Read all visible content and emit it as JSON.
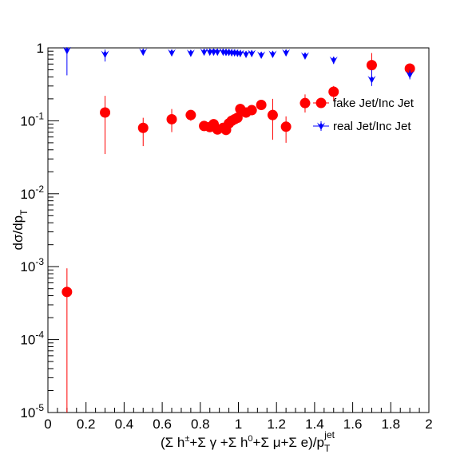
{
  "chart_data": {
    "type": "scatter",
    "title": "",
    "xlabel": "(Σ h±+Σ γ +Σ h0+Σ μ+Σ e)/pTjet",
    "ylabel": "dσ/dpT",
    "xlim": [
      0,
      2
    ],
    "ylim": [
      1e-05,
      1
    ],
    "yscale": "log",
    "grid": false,
    "legend_position": "right",
    "x_ticks": [
      "0",
      "0.2",
      "0.4",
      "0.6",
      "0.8",
      "1",
      "1.2",
      "1.4",
      "1.6",
      "1.8",
      "2"
    ],
    "y_ticks": [
      {
        "base": "10",
        "exp": "-5"
      },
      {
        "base": "10",
        "exp": "-4"
      },
      {
        "base": "10",
        "exp": "-3"
      },
      {
        "base": "10",
        "exp": "-2"
      },
      {
        "base": "10",
        "exp": "-1"
      },
      {
        "base": "1",
        "exp": ""
      }
    ],
    "series": [
      {
        "name": "fake Jet/Inc Jet",
        "color": "#ff0000",
        "marker": "circle",
        "points": [
          {
            "x": 0.1,
            "y": 0.00045,
            "lo": 1e-05,
            "hi": 0.00095
          },
          {
            "x": 0.3,
            "y": 0.13,
            "lo": 0.035,
            "hi": 0.22
          },
          {
            "x": 0.5,
            "y": 0.08,
            "lo": 0.045,
            "hi": 0.11
          },
          {
            "x": 0.65,
            "y": 0.105,
            "lo": 0.07,
            "hi": 0.145
          },
          {
            "x": 0.75,
            "y": 0.12,
            "lo": 0.1,
            "hi": 0.14
          },
          {
            "x": 0.82,
            "y": 0.085,
            "lo": 0.075,
            "hi": 0.095
          },
          {
            "x": 0.85,
            "y": 0.082,
            "lo": 0.073,
            "hi": 0.092
          },
          {
            "x": 0.87,
            "y": 0.09,
            "lo": 0.08,
            "hi": 0.1
          },
          {
            "x": 0.89,
            "y": 0.076,
            "lo": 0.068,
            "hi": 0.085
          },
          {
            "x": 0.92,
            "y": 0.08,
            "lo": 0.07,
            "hi": 0.09
          },
          {
            "x": 0.935,
            "y": 0.075,
            "lo": 0.066,
            "hi": 0.085
          },
          {
            "x": 0.95,
            "y": 0.092,
            "lo": 0.082,
            "hi": 0.102
          },
          {
            "x": 0.965,
            "y": 0.1,
            "lo": 0.09,
            "hi": 0.11
          },
          {
            "x": 0.98,
            "y": 0.105,
            "lo": 0.095,
            "hi": 0.115
          },
          {
            "x": 0.995,
            "y": 0.11,
            "lo": 0.1,
            "hi": 0.12
          },
          {
            "x": 1.01,
            "y": 0.145,
            "lo": 0.12,
            "hi": 0.17
          },
          {
            "x": 1.04,
            "y": 0.13,
            "lo": 0.11,
            "hi": 0.15
          },
          {
            "x": 1.07,
            "y": 0.14,
            "lo": 0.12,
            "hi": 0.16
          },
          {
            "x": 1.12,
            "y": 0.165,
            "lo": 0.14,
            "hi": 0.19
          },
          {
            "x": 1.18,
            "y": 0.12,
            "lo": 0.055,
            "hi": 0.2
          },
          {
            "x": 1.25,
            "y": 0.083,
            "lo": 0.05,
            "hi": 0.115
          },
          {
            "x": 1.35,
            "y": 0.175,
            "lo": 0.13,
            "hi": 0.23
          },
          {
            "x": 1.5,
            "y": 0.25,
            "lo": 0.19,
            "hi": 0.3
          },
          {
            "x": 1.7,
            "y": 0.58,
            "lo": 0.4,
            "hi": 0.85
          },
          {
            "x": 1.9,
            "y": 0.52,
            "lo": 0.43,
            "hi": 0.6
          }
        ]
      },
      {
        "name": "real Jet/Inc Jet",
        "color": "#0000ff",
        "marker": "triangle-down",
        "points": [
          {
            "x": 0.1,
            "y": 0.92,
            "lo": 0.42,
            "hi": 1.0
          },
          {
            "x": 0.3,
            "y": 0.82,
            "lo": 0.65,
            "hi": 0.95
          },
          {
            "x": 0.5,
            "y": 0.88,
            "lo": 0.8,
            "hi": 0.95
          },
          {
            "x": 0.65,
            "y": 0.86,
            "lo": 0.8,
            "hi": 0.92
          },
          {
            "x": 0.75,
            "y": 0.85,
            "lo": 0.8,
            "hi": 0.9
          },
          {
            "x": 0.82,
            "y": 0.88,
            "lo": 0.85,
            "hi": 0.91
          },
          {
            "x": 0.85,
            "y": 0.88,
            "lo": 0.85,
            "hi": 0.91
          },
          {
            "x": 0.87,
            "y": 0.88,
            "lo": 0.85,
            "hi": 0.91
          },
          {
            "x": 0.89,
            "y": 0.88,
            "lo": 0.85,
            "hi": 0.91
          },
          {
            "x": 0.92,
            "y": 0.88,
            "lo": 0.85,
            "hi": 0.91
          },
          {
            "x": 0.935,
            "y": 0.87,
            "lo": 0.84,
            "hi": 0.9
          },
          {
            "x": 0.95,
            "y": 0.87,
            "lo": 0.84,
            "hi": 0.9
          },
          {
            "x": 0.965,
            "y": 0.86,
            "lo": 0.83,
            "hi": 0.89
          },
          {
            "x": 0.98,
            "y": 0.86,
            "lo": 0.83,
            "hi": 0.89
          },
          {
            "x": 0.995,
            "y": 0.85,
            "lo": 0.82,
            "hi": 0.88
          },
          {
            "x": 1.01,
            "y": 0.84,
            "lo": 0.8,
            "hi": 0.88
          },
          {
            "x": 1.04,
            "y": 0.82,
            "lo": 0.78,
            "hi": 0.86
          },
          {
            "x": 1.07,
            "y": 0.84,
            "lo": 0.8,
            "hi": 0.88
          },
          {
            "x": 1.12,
            "y": 0.8,
            "lo": 0.76,
            "hi": 0.84
          },
          {
            "x": 1.18,
            "y": 0.82,
            "lo": 0.75,
            "hi": 0.89
          },
          {
            "x": 1.25,
            "y": 0.86,
            "lo": 0.78,
            "hi": 0.94
          },
          {
            "x": 1.35,
            "y": 0.78,
            "lo": 0.7,
            "hi": 0.86
          },
          {
            "x": 1.5,
            "y": 0.68,
            "lo": 0.6,
            "hi": 0.76
          },
          {
            "x": 1.7,
            "y": 0.37,
            "lo": 0.3,
            "hi": 0.5
          },
          {
            "x": 1.9,
            "y": 0.43,
            "lo": 0.37,
            "hi": 0.5
          }
        ]
      }
    ]
  }
}
